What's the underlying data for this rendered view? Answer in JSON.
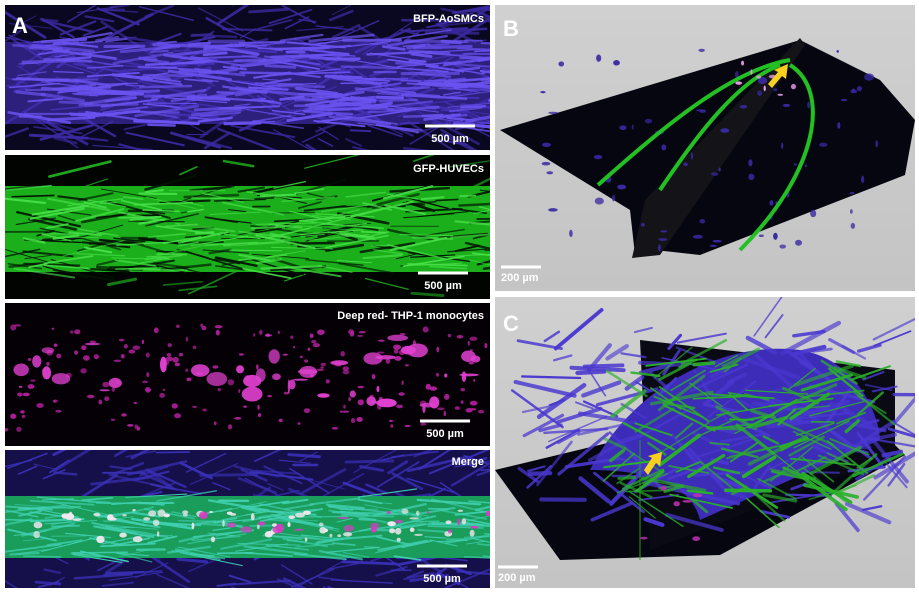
{
  "panels": [
    {
      "label": "A",
      "images": [
        {
          "caption": "BFP-AoSMCs",
          "scale_bar": "500 µm"
        },
        {
          "caption": "GFP-HUVECs",
          "scale_bar": "500 µm"
        },
        {
          "caption": "Deep red- THP-1 monocytes",
          "scale_bar": "500 µm"
        },
        {
          "caption": "Merge",
          "scale_bar": "500 µm"
        }
      ]
    },
    {
      "label": "B",
      "scale_bar": "200 µm"
    },
    {
      "label": "C",
      "scale_bar": "200 µm"
    }
  ]
}
